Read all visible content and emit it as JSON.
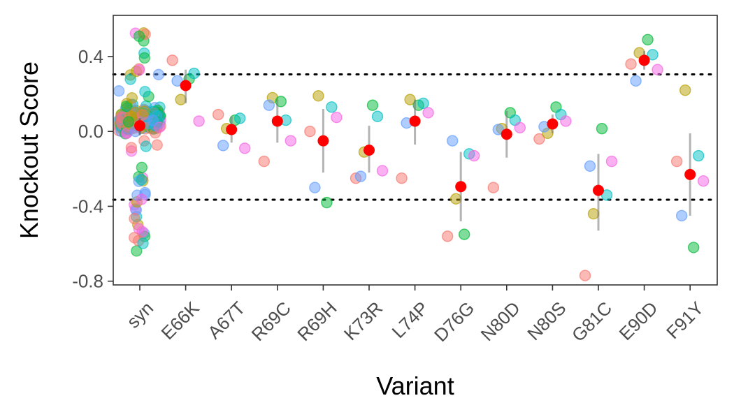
{
  "chart_data": {
    "type": "scatter",
    "title": "",
    "xlabel": "Variant",
    "ylabel": "Knockout Score",
    "categories": [
      "syn",
      "E66K",
      "A67T",
      "R69C",
      "R69H",
      "K73R",
      "L74P",
      "D76G",
      "N80D",
      "N80S",
      "G81C",
      "E90D",
      "F91Y"
    ],
    "y_ticks": [
      0.4,
      0.0,
      -0.4,
      -0.8
    ],
    "y_tick_labels": [
      "0.4",
      "0.0",
      "-0.4",
      "-0.8"
    ],
    "ylim": [
      -0.82,
      0.62
    ],
    "grid": false,
    "legend": "none",
    "reference_lines": [
      0.305,
      -0.365
    ],
    "replicate_colors": [
      "#F8766D",
      "#B79F00",
      "#00BA38",
      "#00BFC4",
      "#619CFF",
      "#F564E3"
    ],
    "mean_color": "#FF0000",
    "variants": [
      {
        "variant": "E66K",
        "points": [
          0.38,
          0.17,
          0.28,
          0.31,
          0.27,
          0.055
        ],
        "mean": 0.245,
        "ci": [
          0.15,
          0.33
        ]
      },
      {
        "variant": "A67T",
        "points": [
          0.09,
          0.015,
          0.06,
          0.07,
          -0.075,
          -0.09
        ],
        "mean": 0.01,
        "ci": [
          -0.06,
          0.08
        ]
      },
      {
        "variant": "R69C",
        "points": [
          -0.16,
          0.18,
          0.16,
          0.06,
          0.14,
          -0.05
        ],
        "mean": 0.055,
        "ci": [
          -0.06,
          0.17
        ]
      },
      {
        "variant": "R69H",
        "points": [
          0.0,
          0.19,
          -0.38,
          0.13,
          -0.3,
          0.075
        ],
        "mean": -0.05,
        "ci": [
          -0.22,
          0.12
        ]
      },
      {
        "variant": "K73R",
        "points": [
          -0.25,
          -0.11,
          0.14,
          0.08,
          -0.24,
          -0.21
        ],
        "mean": -0.1,
        "ci": [
          -0.22,
          0.03
        ]
      },
      {
        "variant": "L74P",
        "points": [
          -0.25,
          0.17,
          0.14,
          0.15,
          0.045,
          0.1
        ],
        "mean": 0.055,
        "ci": [
          -0.07,
          0.17
        ]
      },
      {
        "variant": "D76G",
        "points": [
          -0.56,
          -0.36,
          -0.55,
          -0.12,
          -0.05,
          -0.13
        ],
        "mean": -0.295,
        "ci": [
          -0.48,
          -0.11
        ]
      },
      {
        "variant": "N80D",
        "points": [
          -0.3,
          0.015,
          0.1,
          0.06,
          0.01,
          0.02
        ],
        "mean": -0.015,
        "ci": [
          -0.14,
          0.11
        ]
      },
      {
        "variant": "N80S",
        "points": [
          -0.04,
          -0.01,
          0.13,
          0.09,
          0.025,
          0.055
        ],
        "mean": 0.04,
        "ci": [
          -0.01,
          0.09
        ]
      },
      {
        "variant": "G81C",
        "points": [
          -0.77,
          -0.44,
          0.015,
          -0.34,
          -0.185,
          -0.16
        ],
        "mean": -0.315,
        "ci": [
          -0.53,
          -0.12
        ]
      },
      {
        "variant": "E90D",
        "points": [
          0.36,
          0.42,
          0.49,
          0.41,
          0.27,
          0.33
        ],
        "mean": 0.38,
        "ci": [
          0.33,
          0.43
        ]
      },
      {
        "variant": "F91Y",
        "points": [
          -0.16,
          0.22,
          -0.62,
          -0.13,
          -0.45,
          -0.265
        ],
        "mean": -0.23,
        "ci": [
          -0.45,
          -0.01
        ]
      }
    ],
    "syn": {
      "mean": 0.03,
      "ci": [
        -0.02,
        0.07
      ],
      "min": -0.66,
      "max": 0.55
    }
  }
}
